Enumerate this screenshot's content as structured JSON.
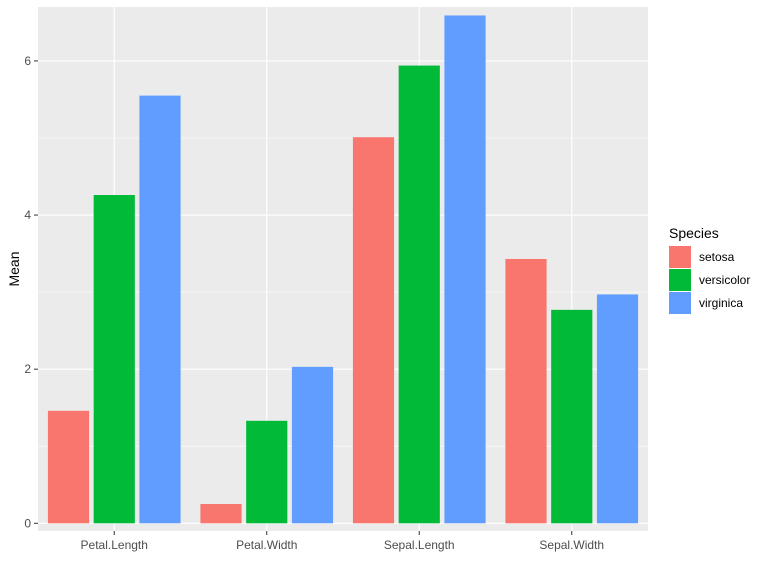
{
  "chart_data": {
    "type": "bar",
    "title": "",
    "xlabel": "",
    "ylabel": "Mean",
    "categories": [
      "Petal.Length",
      "Petal.Width",
      "Sepal.Length",
      "Sepal.Width"
    ],
    "ylim": [
      -0.1,
      6.7
    ],
    "yticks": [
      0,
      2,
      4,
      6
    ],
    "grid": true,
    "background_color": "#EBEBEB",
    "grid_color": "#FFFFFF",
    "legend": {
      "title": "Species",
      "position": "right"
    },
    "series": [
      {
        "name": "setosa",
        "color": "#F8766D",
        "values": [
          1.46,
          0.25,
          5.01,
          3.43
        ]
      },
      {
        "name": "versicolor",
        "color": "#00BA38",
        "values": [
          4.26,
          1.33,
          5.94,
          2.77
        ]
      },
      {
        "name": "virginica",
        "color": "#619CFF",
        "values": [
          5.55,
          2.03,
          6.59,
          2.97
        ]
      }
    ]
  }
}
